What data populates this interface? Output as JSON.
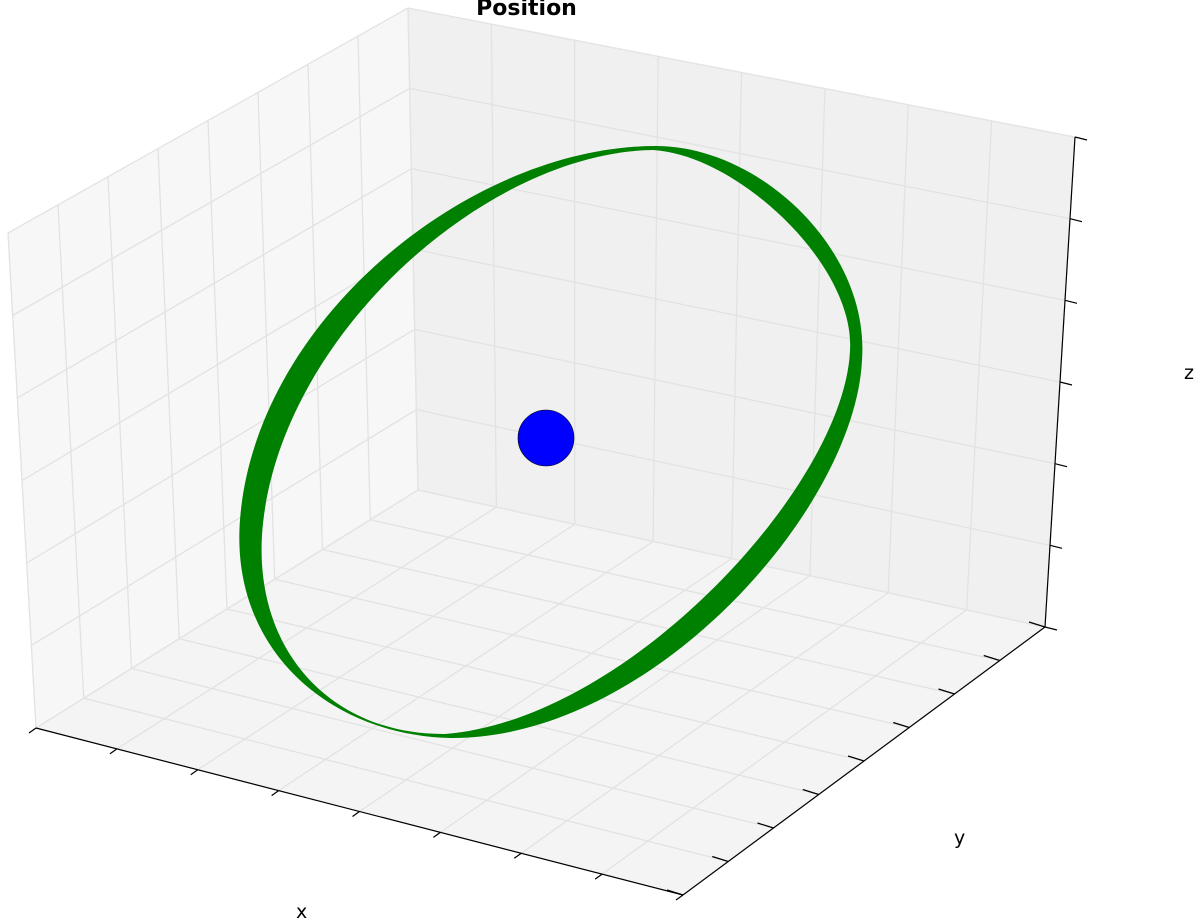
{
  "chart_data": {
    "type": "scatter",
    "projection": "3d",
    "title": "Position",
    "xlabel": "x",
    "ylabel": "y",
    "zlabel": "z",
    "grid": true,
    "tick_labels_visible": false,
    "series": [
      {
        "kind": "surface-ring",
        "color": "#008000"
      },
      {
        "kind": "marker",
        "color": "#0000ff"
      }
    ]
  }
}
